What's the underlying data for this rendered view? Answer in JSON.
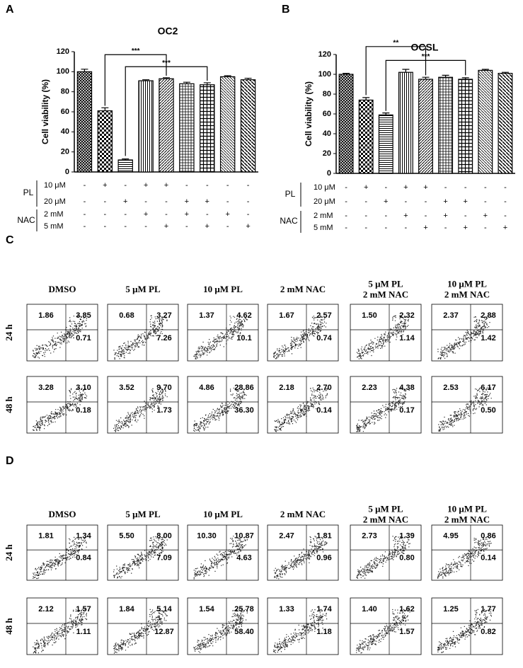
{
  "chart_data": [
    {
      "type": "bar",
      "panel": "A",
      "title": "OC2",
      "y_label": "Cell viability (%)",
      "color": "#000000",
      "categories": [
        null,
        null,
        null,
        null,
        null,
        null,
        null,
        null,
        null
      ],
      "values": [
        100,
        61,
        12,
        91,
        93,
        88,
        87,
        95,
        92
      ],
      "errors": [
        2.5,
        3,
        1,
        1,
        1,
        1.5,
        2,
        1,
        1.5
      ],
      "ylim": [
        0,
        120
      ],
      "yticks": [
        0,
        20,
        40,
        60,
        80,
        100,
        120
      ],
      "annotations": [
        "***",
        "***"
      ],
      "treatment_groups": [
        {
          "name": "PL",
          "rows": [
            {
              "label": "10 μM",
              "marks": [
                "-",
                "+",
                "-",
                "+",
                "+",
                "-",
                "-",
                "-",
                "-"
              ]
            },
            {
              "label": "20 μM",
              "marks": [
                "-",
                "-",
                "+",
                "-",
                "-",
                "+",
                "+",
                "-",
                "-"
              ]
            }
          ]
        },
        {
          "name": "NAC",
          "rows": [
            {
              "label": "2 mM",
              "marks": [
                "-",
                "-",
                "-",
                "+",
                "-",
                "+",
                "-",
                "+",
                "-"
              ]
            },
            {
              "label": "5 mM",
              "marks": [
                "-",
                "-",
                "-",
                "-",
                "+",
                "-",
                "+",
                "-",
                "+"
              ]
            }
          ]
        }
      ]
    },
    {
      "type": "bar",
      "panel": "B",
      "title": "OCSL",
      "y_label": "Cell viability (%)",
      "color": "#000000",
      "categories": [
        null,
        null,
        null,
        null,
        null,
        null,
        null,
        null,
        null
      ],
      "values": [
        100,
        74,
        59,
        102,
        95,
        97,
        95,
        104,
        101
      ],
      "errors": [
        1,
        2.5,
        2,
        3,
        2,
        2,
        1.5,
        1,
        1
      ],
      "ylim": [
        0,
        120
      ],
      "yticks": [
        0,
        20,
        40,
        60,
        80,
        100,
        120
      ],
      "annotations": [
        "**",
        "***"
      ],
      "treatment_groups": [
        {
          "name": "PL",
          "rows": [
            {
              "label": "10 μM",
              "marks": [
                "-",
                "+",
                "-",
                "+",
                "+",
                "-",
                "-",
                "-",
                "-"
              ]
            },
            {
              "label": "20 μM",
              "marks": [
                "-",
                "-",
                "+",
                "-",
                "-",
                "+",
                "+",
                "-",
                "-"
              ]
            }
          ]
        },
        {
          "name": "NAC",
          "rows": [
            {
              "label": "2 mM",
              "marks": [
                "-",
                "-",
                "-",
                "+",
                "-",
                "+",
                "-",
                "+",
                "-"
              ]
            },
            {
              "label": "5 mM",
              "marks": [
                "-",
                "-",
                "-",
                "-",
                "+",
                "-",
                "+",
                "-",
                "+"
              ]
            }
          ]
        }
      ]
    }
  ],
  "flow_panels": [
    {
      "letter": "C",
      "columns": [
        [
          "DMSO"
        ],
        [
          "5 μM PL"
        ],
        [
          "10 μM PL"
        ],
        [
          "2 mM NAC"
        ],
        [
          "5 μM PL",
          "2 mM NAC"
        ],
        [
          "10 μM PL",
          "2 mM NAC"
        ]
      ],
      "rows": [
        {
          "label": "24 h",
          "plots": [
            [
              "1.86",
              "3.85",
              "0.71"
            ],
            [
              "0.68",
              "3.27",
              "7.26"
            ],
            [
              "1.37",
              "4.62",
              "10.1"
            ],
            [
              "1.67",
              "2.57",
              "0.74"
            ],
            [
              "1.50",
              "2.32",
              "1.14"
            ],
            [
              "2.37",
              "2.88",
              "1.42"
            ]
          ]
        },
        {
          "label": "48 h",
          "plots": [
            [
              "3.28",
              "3.10",
              "0.18"
            ],
            [
              "3.52",
              "9.70",
              "1.73"
            ],
            [
              "4.86",
              "28.86",
              "36.30"
            ],
            [
              "2.18",
              "2.70",
              "0.14"
            ],
            [
              "2.23",
              "4.38",
              "0.17"
            ],
            [
              "2.53",
              "6.17",
              "0.50"
            ]
          ]
        }
      ]
    },
    {
      "letter": "D",
      "columns": [
        [
          "DMSO"
        ],
        [
          "5 μM PL"
        ],
        [
          "10 μM PL"
        ],
        [
          "2 mM NAC"
        ],
        [
          "5 μM PL",
          "2 mM NAC"
        ],
        [
          "10 μM PL",
          "2 mM NAC"
        ]
      ],
      "rows": [
        {
          "label": "24 h",
          "plots": [
            [
              "1.81",
              "1.34",
              "0.84"
            ],
            [
              "5.50",
              "8.00",
              "7.09"
            ],
            [
              "10.30",
              "10.87",
              "4.63"
            ],
            [
              "2.47",
              "1.81",
              "0.96"
            ],
            [
              "2.73",
              "1.39",
              "0.80"
            ],
            [
              "4.95",
              "0.86",
              "0.14"
            ]
          ]
        },
        {
          "label": "48 h",
          "plots": [
            [
              "2.12",
              "1.57",
              "1.11"
            ],
            [
              "1.84",
              "5.14",
              "12.87"
            ],
            [
              "1.54",
              "25.78",
              "58.40"
            ],
            [
              "1.33",
              "1.74",
              "1.18"
            ],
            [
              "1.40",
              "1.62",
              "1.57"
            ],
            [
              "1.25",
              "1.77",
              "0.82"
            ]
          ]
        }
      ]
    }
  ]
}
